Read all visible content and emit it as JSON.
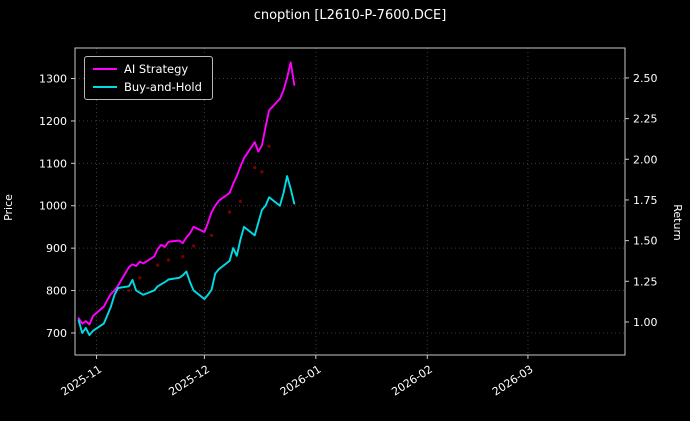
{
  "title": "cnoption [L2610-P-7600.DCE]",
  "chart_data": {
    "type": "line",
    "title": "cnoption [L2610-P-7600.DCE]",
    "ylabel_left": "Price",
    "ylabel_right": "Return",
    "background": "#000000",
    "grid": "dotted",
    "grid_color": "#3c3c3c",
    "spine_color": "#c8c8c8",
    "text_color": "#ffffff",
    "legend_position": "upper-left",
    "xlim": [
      "2025-10-26",
      "2026-03-28"
    ],
    "x_ticks": [
      {
        "date": "2025-11-01",
        "label": "2025-11"
      },
      {
        "date": "2025-12-01",
        "label": "2025-12"
      },
      {
        "date": "2026-01-01",
        "label": "2026-01"
      },
      {
        "date": "2026-02-01",
        "label": "2026-02"
      },
      {
        "date": "2026-03-01",
        "label": "2026-03"
      }
    ],
    "price_lim": [
      648,
      1372
    ],
    "price_ticks": [
      700,
      800,
      900,
      1000,
      1100,
      1200,
      1300
    ],
    "return_lim": [
      0.797,
      2.684
    ],
    "return_ticks": [
      "1.00",
      "1.25",
      "1.50",
      "1.75",
      "2.00",
      "2.25",
      "2.50"
    ],
    "dates": [
      "2025-10-27",
      "2025-10-28",
      "2025-10-29",
      "2025-10-30",
      "2025-10-31",
      "2025-11-03",
      "2025-11-04",
      "2025-11-05",
      "2025-11-06",
      "2025-11-07",
      "2025-11-10",
      "2025-11-11",
      "2025-11-12",
      "2025-11-13",
      "2025-11-14",
      "2025-11-17",
      "2025-11-18",
      "2025-11-19",
      "2025-11-20",
      "2025-11-21",
      "2025-11-24",
      "2025-11-25",
      "2025-11-26",
      "2025-11-27",
      "2025-11-28",
      "2025-12-01",
      "2025-12-02",
      "2025-12-03",
      "2025-12-04",
      "2025-12-05",
      "2025-12-08",
      "2025-12-09",
      "2025-12-10",
      "2025-12-11",
      "2025-12-12",
      "2025-12-15",
      "2025-12-16",
      "2025-12-17",
      "2025-12-18",
      "2025-12-19",
      "2025-12-22",
      "2025-12-23",
      "2025-12-24",
      "2025-12-25",
      "2025-12-26"
    ],
    "series": [
      {
        "name": "AI Strategy",
        "color": "#FF00FF",
        "axis": "price",
        "values": [
          735,
          722,
          728,
          720,
          740,
          762,
          778,
          792,
          800,
          812,
          855,
          862,
          858,
          868,
          864,
          880,
          898,
          908,
          903,
          915,
          918,
          912,
          925,
          935,
          950,
          938,
          960,
          985,
          1000,
          1012,
          1030,
          1052,
          1070,
          1092,
          1112,
          1150,
          1128,
          1142,
          1185,
          1225,
          1252,
          1272,
          1302,
          1338,
          1285
        ]
      },
      {
        "name": "Buy-and-Hold",
        "color": "#00DCE6",
        "axis": "price",
        "values": [
          730,
          700,
          712,
          695,
          705,
          722,
          742,
          762,
          790,
          806,
          810,
          825,
          800,
          795,
          790,
          800,
          810,
          815,
          820,
          826,
          830,
          836,
          845,
          820,
          800,
          780,
          790,
          802,
          840,
          850,
          870,
          900,
          882,
          920,
          950,
          930,
          960,
          990,
          1000,
          1020,
          1000,
          1030,
          1070,
          1040,
          1005
        ]
      }
    ],
    "trade_markers": {
      "color": "#8B0000",
      "points": [
        {
          "date": "2025-11-10",
          "price": 800
        },
        {
          "date": "2025-11-13",
          "price": 830
        },
        {
          "date": "2025-11-18",
          "price": 860
        },
        {
          "date": "2025-11-21",
          "price": 872
        },
        {
          "date": "2025-11-25",
          "price": 880
        },
        {
          "date": "2025-11-28",
          "price": 905
        },
        {
          "date": "2025-12-03",
          "price": 930
        },
        {
          "date": "2025-12-08",
          "price": 985
        },
        {
          "date": "2025-12-11",
          "price": 1010
        },
        {
          "date": "2025-12-15",
          "price": 1090
        },
        {
          "date": "2025-12-17",
          "price": 1080
        },
        {
          "date": "2025-12-19",
          "price": 1140
        }
      ]
    }
  }
}
